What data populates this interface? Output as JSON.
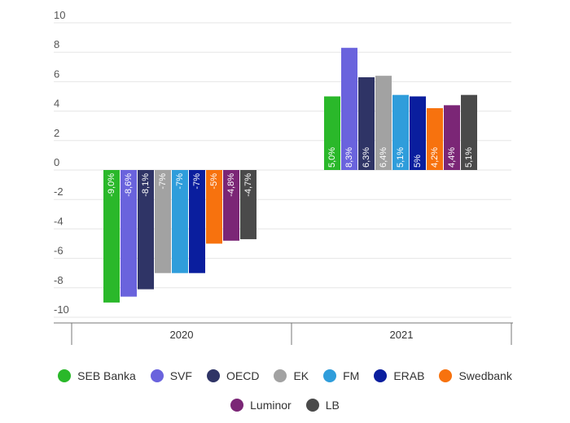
{
  "chart_data": {
    "type": "bar",
    "title": "",
    "xlabel": "",
    "ylabel": "",
    "ylim": [
      -10,
      10
    ],
    "yticks": [
      10,
      8,
      6,
      4,
      2,
      0,
      -2,
      -4,
      -6,
      -8,
      -10
    ],
    "categories": [
      "2020",
      "2021"
    ],
    "series": [
      {
        "name": "SEB Banka",
        "color": "#2ab82a",
        "values": [
          -9.0,
          5.0
        ],
        "labels": [
          "-9,0%",
          "5,0%"
        ]
      },
      {
        "name": "SVF",
        "color": "#6a63dd",
        "values": [
          -8.6,
          8.3
        ],
        "labels": [
          "-8,6%",
          "8,3%"
        ]
      },
      {
        "name": "OECD",
        "color": "#2f3466",
        "values": [
          -8.1,
          6.3
        ],
        "labels": [
          "-8,1%",
          "6,3%"
        ]
      },
      {
        "name": "EK",
        "color": "#a2a2a2",
        "values": [
          -7.0,
          6.4
        ],
        "labels": [
          "-7%",
          "6,4%"
        ]
      },
      {
        "name": "FM",
        "color": "#2f9ddb",
        "values": [
          -7.0,
          5.1
        ],
        "labels": [
          "-7%",
          "5,1%"
        ]
      },
      {
        "name": "ERAB",
        "color": "#0a1e9e",
        "values": [
          -7.0,
          5.0
        ],
        "labels": [
          "-7%",
          "5%"
        ]
      },
      {
        "name": "Swedbank",
        "color": "#f7720e",
        "values": [
          -5.0,
          4.2
        ],
        "labels": [
          "-5%",
          "4,2%"
        ]
      },
      {
        "name": "Luminor",
        "color": "#7b2676",
        "values": [
          -4.8,
          4.4
        ],
        "labels": [
          "-4,8%",
          "4,4%"
        ]
      },
      {
        "name": "LB",
        "color": "#4a4a4a",
        "values": [
          -4.7,
          5.1
        ],
        "labels": [
          "-4,7%",
          "5,1%"
        ]
      }
    ]
  }
}
